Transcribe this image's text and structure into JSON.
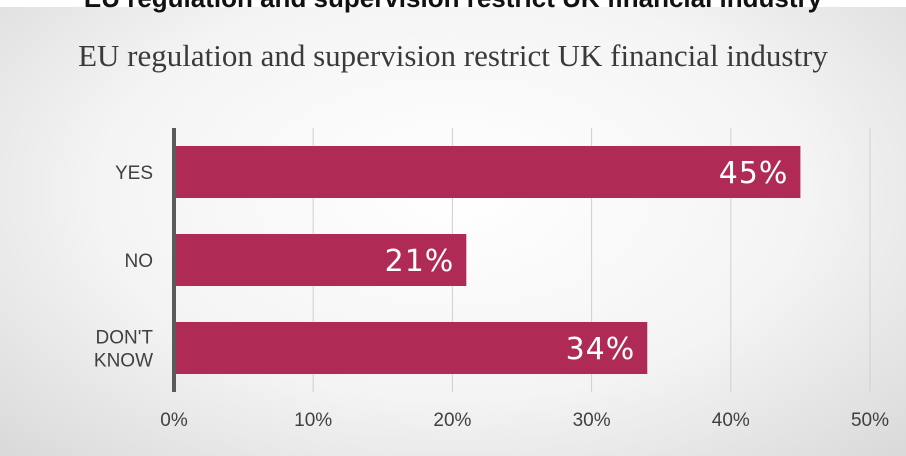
{
  "header": {
    "cut_title": "EU regulation and supervision restrict UK financial industry"
  },
  "chart_data": {
    "type": "bar",
    "orientation": "horizontal",
    "title": "EU regulation and supervision restrict UK financial industry",
    "categories": [
      [
        "YES"
      ],
      [
        "NO"
      ],
      [
        "DON'T",
        "KNOW"
      ]
    ],
    "values": [
      45,
      21,
      34
    ],
    "data_labels": [
      "45%",
      "21%",
      "34%"
    ],
    "x_ticks": [
      "0%",
      "10%",
      "20%",
      "30%",
      "40%",
      "50%"
    ],
    "xlim": [
      0,
      50
    ],
    "grid": true,
    "bar_color": "#b02a56",
    "axis_color": "#5a5a5a",
    "grid_color": "#cfcfcf"
  }
}
